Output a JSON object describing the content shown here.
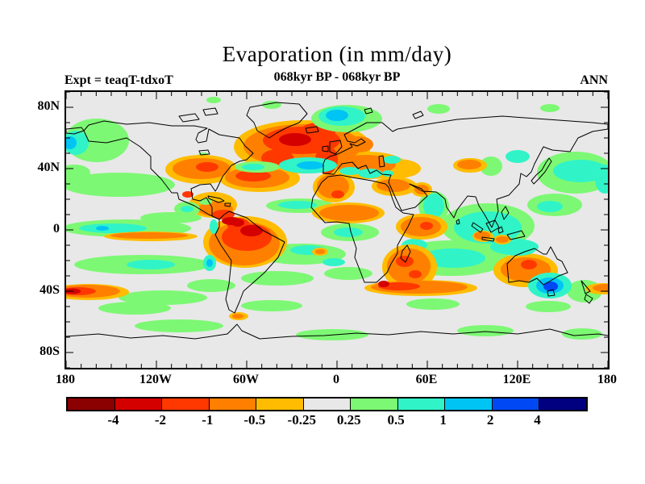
{
  "header": {
    "title": "Evaporation (in mm/day)",
    "subtitle": "068kyr BP - 068kyr BP",
    "experiment": "Expt = teaqT-tdxoT",
    "season": "ANN"
  },
  "axes": {
    "y_labels": [
      "80N",
      "40N",
      "0",
      "40S",
      "80S"
    ],
    "x_labels": [
      "180",
      "120W",
      "60W",
      "0",
      "60E",
      "120E",
      "180"
    ]
  },
  "colorbar": {
    "labels": [
      "-4",
      "-2",
      "-1",
      "-0.5",
      "-0.25",
      "0.25",
      "0.5",
      "1",
      "2",
      "4"
    ],
    "colors": [
      "#8b0000",
      "#d40000",
      "#ff3800",
      "#ff8000",
      "#ffbc00",
      "#e8e8e8",
      "#7df874",
      "#30f4c8",
      "#00c4f4",
      "#0048f4",
      "#000080"
    ]
  },
  "chart_data": {
    "type": "filled_contour_map",
    "title": "Evaporation (in mm/day)",
    "subtitle": "068kyr BP - 068kyr BP",
    "experiment": "Expt = teaqT-tdxoT",
    "season": "ANN",
    "projection": "equirectangular",
    "lon_range": [
      -180,
      180
    ],
    "lat_range": [
      -90,
      90
    ],
    "x_tick_labels": [
      "180",
      "120W",
      "60W",
      "0",
      "60E",
      "120E",
      "180"
    ],
    "y_tick_labels": [
      "80N",
      "40N",
      "0",
      "40S",
      "80S"
    ],
    "minor_tick_interval_deg": 10,
    "units": "mm/day",
    "contour_levels": [
      -4,
      -2,
      -1,
      -0.5,
      -0.25,
      0.25,
      0.5,
      1,
      2,
      4
    ],
    "palette_hex": [
      "#8b0000",
      "#d40000",
      "#ff3800",
      "#ff8000",
      "#ffbc00",
      "#e8e8e8",
      "#7df874",
      "#30f4c8",
      "#00c4f4",
      "#0048f4",
      "#000080"
    ],
    "neutral_band": "values between -0.25 and 0.25 shown light gray",
    "features": [
      {
        "region": "North Atlantic 45-65N (S of Iceland to W Europe)",
        "anomaly_mm_day": "-2 to -1 broad, -4 to -2 touches"
      },
      {
        "region": "Subtropical N Atlantic ~30N 60W",
        "anomaly_mm_day": "-2 to -1"
      },
      {
        "region": "Southern US / Great Plains",
        "anomaly_mm_day": "-1 to -0.5"
      },
      {
        "region": "Caribbean / Venezuela",
        "anomaly_mm_day": "-2 to -1"
      },
      {
        "region": "Amazon basin",
        "anomaly_mm_day": "-2 to -1 broad with -4 to -2 core"
      },
      {
        "region": "Europe / Baltic / E Europe",
        "anomaly_mm_day": "-1 to -0.5"
      },
      {
        "region": "NW Africa, Sahel and Central Africa",
        "anomaly_mm_day": "-1 to -0.5"
      },
      {
        "region": "Southern Africa and band SE of the Cape",
        "anomaly_mm_day": "-2 to -1"
      },
      {
        "region": "Middle East / Turkey",
        "anomaly_mm_day": "-1 to -0.5"
      },
      {
        "region": "Australian interior",
        "anomaly_mm_day": "-1 to -0.5"
      },
      {
        "region": "SW Pacific ~45S near 180",
        "anomaly_mm_day": "-2 to -1"
      },
      {
        "region": "E equatorial Pacific ~7S thin band",
        "anomaly_mm_day": "-1 to -0.5"
      },
      {
        "region": "Norwegian Sea",
        "anomaly_mm_day": "+1 to +2 core"
      },
      {
        "region": "Mid N Atlantic ~35N",
        "anomaly_mm_day": "+1 to +2 core"
      },
      {
        "region": "Mediterranean & Black Sea",
        "anomaly_mm_day": "+0.5 to +1"
      },
      {
        "region": "India, SE Asia, Indonesia, W Pacific warm pool",
        "anomaly_mm_day": "+0.5 to +1"
      },
      {
        "region": "Equatorial & S Pacific bands, NE Pacific",
        "anomaly_mm_day": "+0.25 to +1"
      },
      {
        "region": "E of Japan / NW Pacific",
        "anomaly_mm_day": "+0.5 to +1"
      },
      {
        "region": "Tasman Sea / SE Australia",
        "anomaly_mm_day": "+1 to +4 core near Tasmania"
      },
      {
        "region": "Remaining land and ocean",
        "anomaly_mm_day": "-0.25 to +0.25 (neutral)"
      }
    ]
  }
}
